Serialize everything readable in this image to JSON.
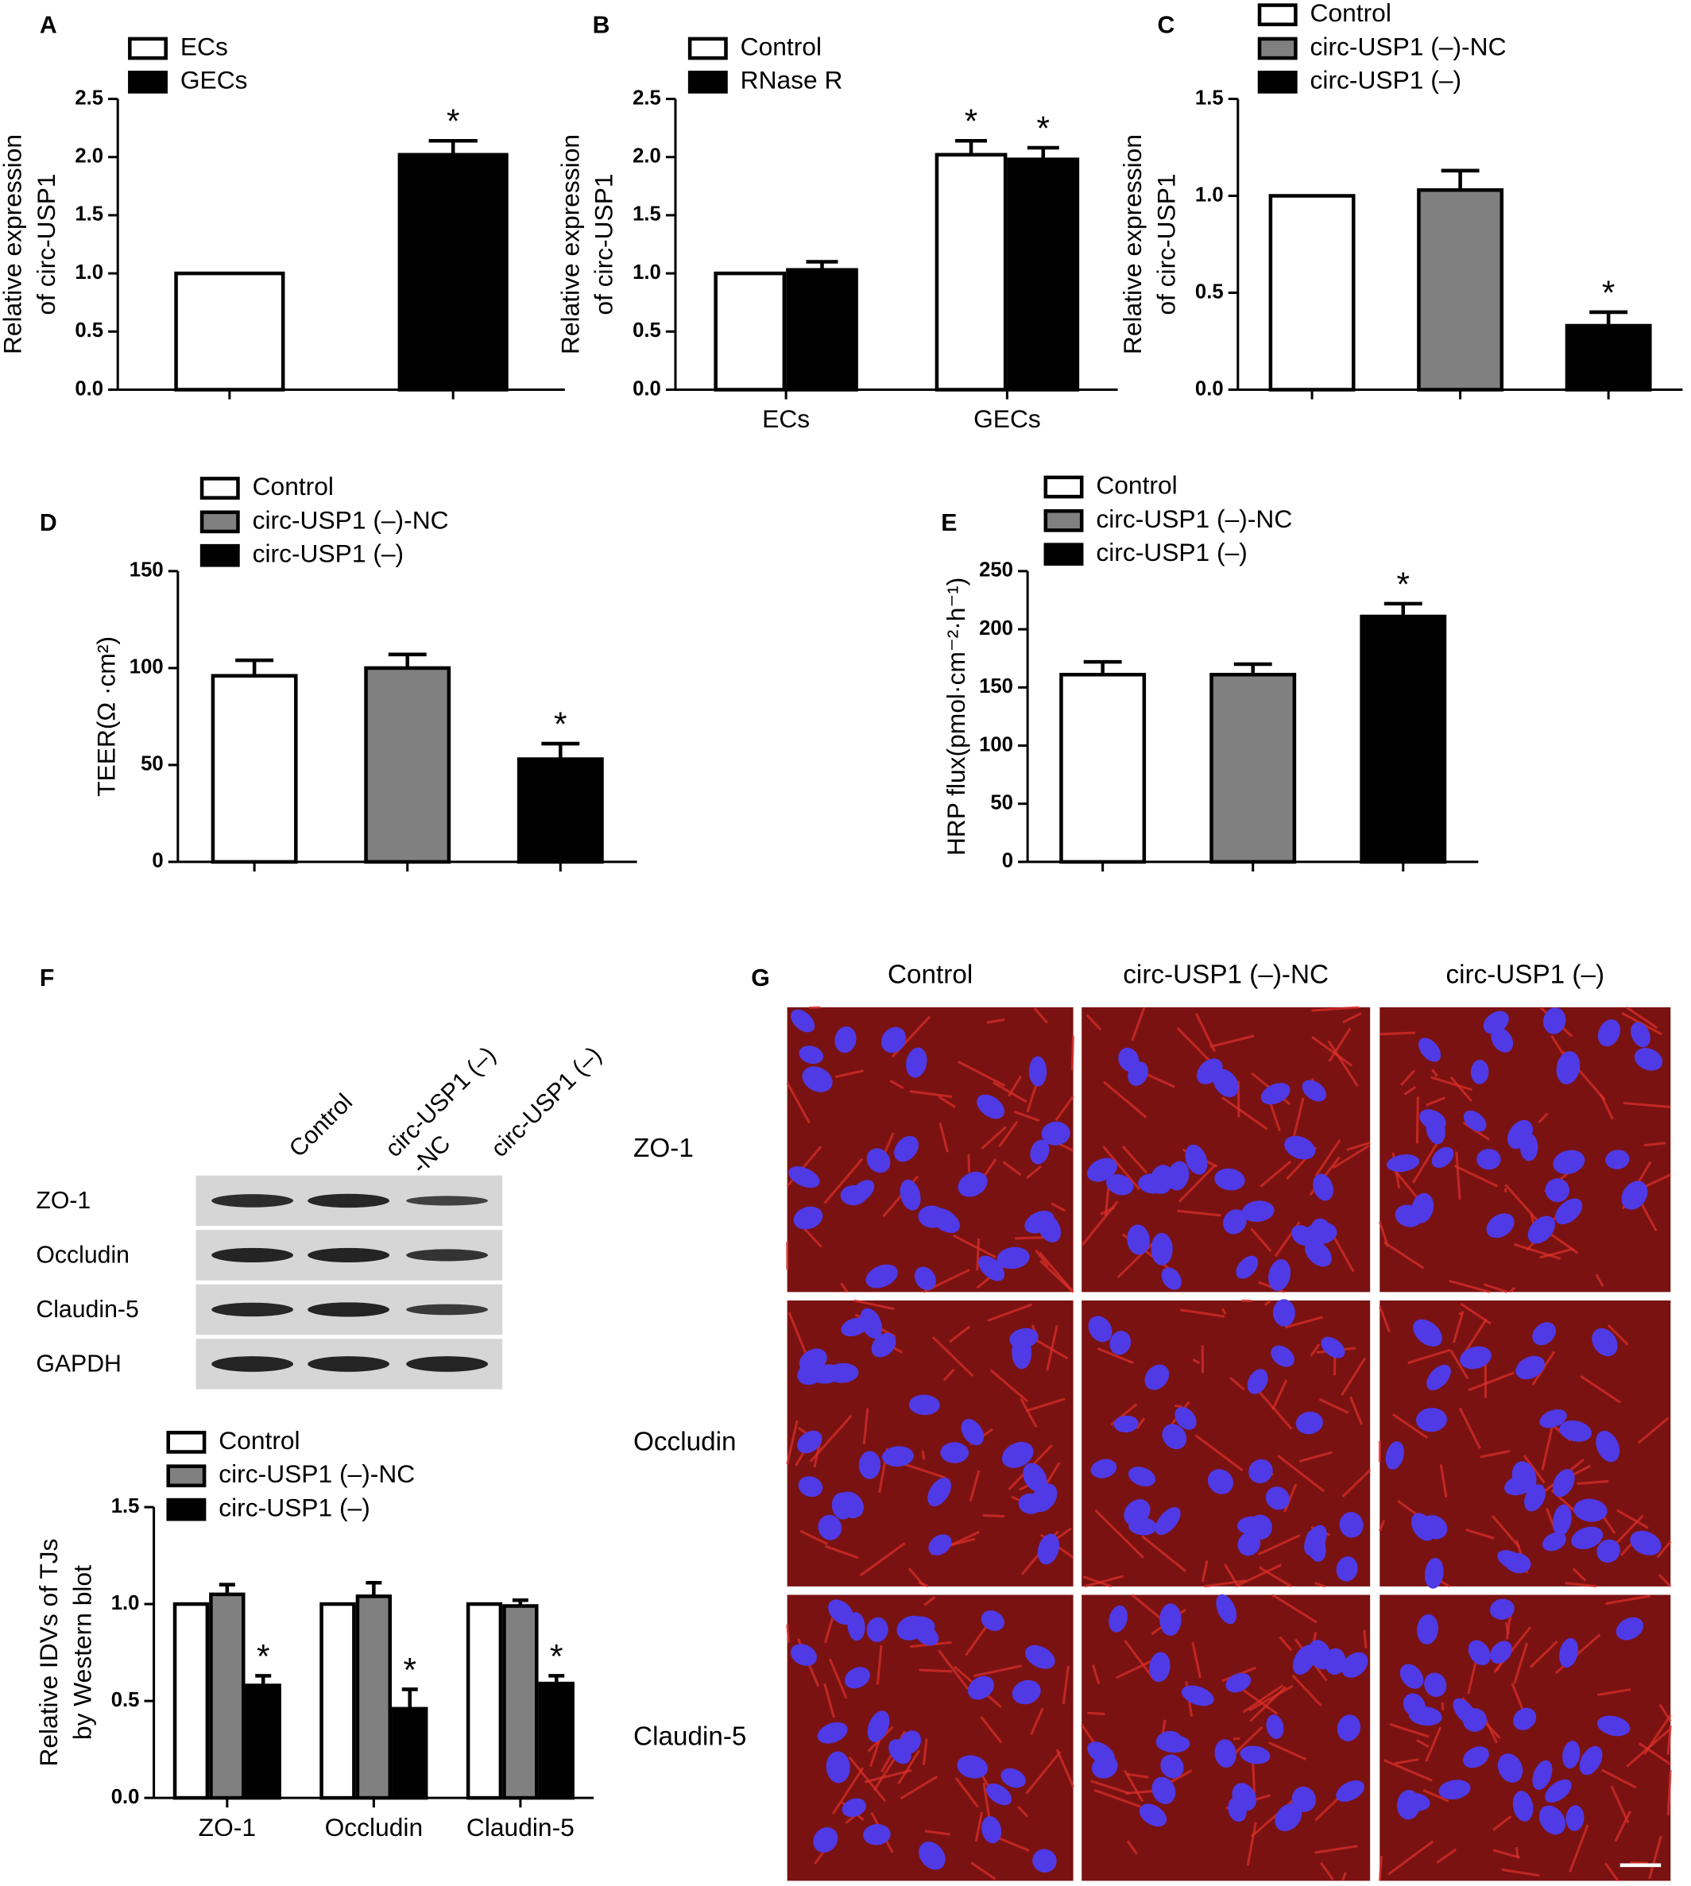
{
  "chart_data": [
    {
      "panel": "A",
      "type": "bar",
      "y_label": [
        "Relative expression",
        "of circ-USP1"
      ],
      "categories": [
        null,
        null
      ],
      "series": [
        {
          "name": "ECs",
          "color": "#ffffff",
          "values": [
            1.0,
            null
          ],
          "errors": [
            0,
            null
          ],
          "annotations": [
            null,
            null
          ]
        },
        {
          "name": "GECs",
          "color": "#000000",
          "values": [
            null,
            2.02
          ],
          "errors": [
            null,
            0.12
          ],
          "annotations": [
            null,
            "*"
          ]
        }
      ],
      "ylim": [
        0,
        2.5
      ],
      "yticks": [
        {
          "value": 0,
          "label": "0.0"
        },
        0.5,
        {
          "value": 1,
          "label": "1.0"
        },
        1.5,
        {
          "value": 2,
          "label": "2.0"
        },
        2.5
      ]
    },
    {
      "panel": "B",
      "type": "bar",
      "y_label": [
        "Relative expression",
        "of circ-USP1"
      ],
      "categories": [
        "ECs",
        "GECs"
      ],
      "series": [
        {
          "name": "Control",
          "color": "#ffffff",
          "values": [
            1.0,
            2.02
          ],
          "errors": [
            0,
            0.12
          ],
          "annotations": [
            null,
            "*"
          ]
        },
        {
          "name": "RNase R",
          "color": "#000000",
          "values": [
            1.03,
            1.98
          ],
          "errors": [
            0.07,
            0.1
          ],
          "annotations": [
            null,
            "*"
          ]
        }
      ],
      "ylim": [
        0,
        2.5
      ],
      "yticks": [
        {
          "value": 0,
          "label": "0.0"
        },
        0.5,
        {
          "value": 1,
          "label": "1.0"
        },
        1.5,
        {
          "value": 2,
          "label": "2.0"
        },
        2.5
      ]
    },
    {
      "panel": "C",
      "type": "bar",
      "y_label": [
        "Relative expression",
        "of circ-USP1"
      ],
      "categories": [
        null,
        null,
        null
      ],
      "series": [
        {
          "name": "Control",
          "color": "#ffffff",
          "values": [
            1.0,
            null,
            null
          ],
          "errors": [
            0,
            null,
            null
          ],
          "annotations": [
            null,
            null,
            null
          ]
        },
        {
          "name": "circ-USP1 (–)-NC",
          "color": "#808080",
          "values": [
            null,
            1.03,
            null
          ],
          "errors": [
            null,
            0.1,
            null
          ],
          "annotations": [
            null,
            null,
            null
          ]
        },
        {
          "name": "circ-USP1 (–)",
          "color": "#000000",
          "values": [
            null,
            null,
            0.33
          ],
          "errors": [
            null,
            null,
            0.07
          ],
          "annotations": [
            null,
            null,
            "*"
          ]
        }
      ],
      "ylim": [
        0,
        1.5
      ],
      "yticks": [
        {
          "value": 0,
          "label": "0.0"
        },
        0.5,
        {
          "value": 1,
          "label": "1.0"
        },
        1.5
      ]
    },
    {
      "panel": "D",
      "type": "bar",
      "y_label": [
        "TEER(Ω ·cm²)"
      ],
      "categories": [
        null,
        null,
        null
      ],
      "series": [
        {
          "name": "Control",
          "color": "#ffffff",
          "values": [
            96,
            null,
            null
          ],
          "errors": [
            8,
            null,
            null
          ],
          "annotations": [
            null,
            null,
            null
          ]
        },
        {
          "name": "circ-USP1 (–)-NC",
          "color": "#808080",
          "values": [
            null,
            100,
            null
          ],
          "errors": [
            null,
            7,
            null
          ],
          "annotations": [
            null,
            null,
            null
          ]
        },
        {
          "name": "circ-USP1 (–)",
          "color": "#000000",
          "values": [
            null,
            null,
            53
          ],
          "errors": [
            null,
            null,
            8
          ],
          "annotations": [
            null,
            null,
            "*"
          ]
        }
      ],
      "ylim": [
        0,
        150
      ],
      "yticks": [
        0,
        50,
        100,
        150
      ]
    },
    {
      "panel": "E",
      "type": "bar",
      "y_label": [
        "HRP flux(pmol·cm⁻²·h⁻¹)"
      ],
      "categories": [
        null,
        null,
        null
      ],
      "series": [
        {
          "name": "Control",
          "color": "#ffffff",
          "values": [
            161,
            null,
            null
          ],
          "errors": [
            11,
            null,
            null
          ],
          "annotations": [
            null,
            null,
            null
          ]
        },
        {
          "name": "circ-USP1 (–)-NC",
          "color": "#808080",
          "values": [
            null,
            161,
            null
          ],
          "errors": [
            null,
            9,
            null
          ],
          "annotations": [
            null,
            null,
            null
          ]
        },
        {
          "name": "circ-USP1 (–)",
          "color": "#000000",
          "values": [
            null,
            null,
            211
          ],
          "errors": [
            null,
            null,
            11
          ],
          "annotations": [
            null,
            null,
            "*"
          ]
        }
      ],
      "ylim": [
        0,
        250
      ],
      "yticks": [
        0,
        50,
        100,
        150,
        200,
        250
      ]
    },
    {
      "type": "bar",
      "y_label": [
        "Relative IDVs of TJs",
        "by Western blot"
      ],
      "categories": [
        "ZO-1",
        "Occludin",
        "Claudin-5"
      ],
      "series": [
        {
          "name": "Control",
          "color": "#ffffff",
          "values": [
            1.0,
            1.0,
            1.0
          ],
          "errors": [
            0,
            0,
            0
          ],
          "annotations": [
            null,
            null,
            null
          ]
        },
        {
          "name": "circ-USP1 (–)-NC",
          "color": "#808080",
          "values": [
            1.05,
            1.04,
            0.99
          ],
          "errors": [
            0.05,
            0.07,
            0.03
          ],
          "annotations": [
            null,
            null,
            null
          ]
        },
        {
          "name": "circ-USP1 (–)",
          "color": "#000000",
          "values": [
            0.58,
            0.46,
            0.59
          ],
          "errors": [
            0.05,
            0.1,
            0.04
          ],
          "annotations": [
            "*",
            "*",
            "*"
          ]
        }
      ],
      "ylim": [
        0,
        1.5
      ],
      "yticks": [
        {
          "value": 0,
          "label": "0.0"
        },
        0.5,
        {
          "value": 1,
          "label": "1.0"
        },
        1.5
      ]
    }
  ],
  "blot": {
    "panel": "F",
    "lanes": [
      [
        "Control"
      ],
      [
        "circ-USP1 (–)",
        "-NC"
      ],
      [
        "circ-USP1 (–)"
      ]
    ],
    "rows": [
      "ZO-1",
      "Occludin",
      "Claudin-5",
      "GAPDH"
    ]
  },
  "micrographs": {
    "panel": "G",
    "columns": [
      "Control",
      "circ-USP1 (–)-NC",
      "circ-USP1 (–)"
    ],
    "rows": [
      "ZO-1",
      "Occludin",
      "Claudin-5"
    ]
  }
}
